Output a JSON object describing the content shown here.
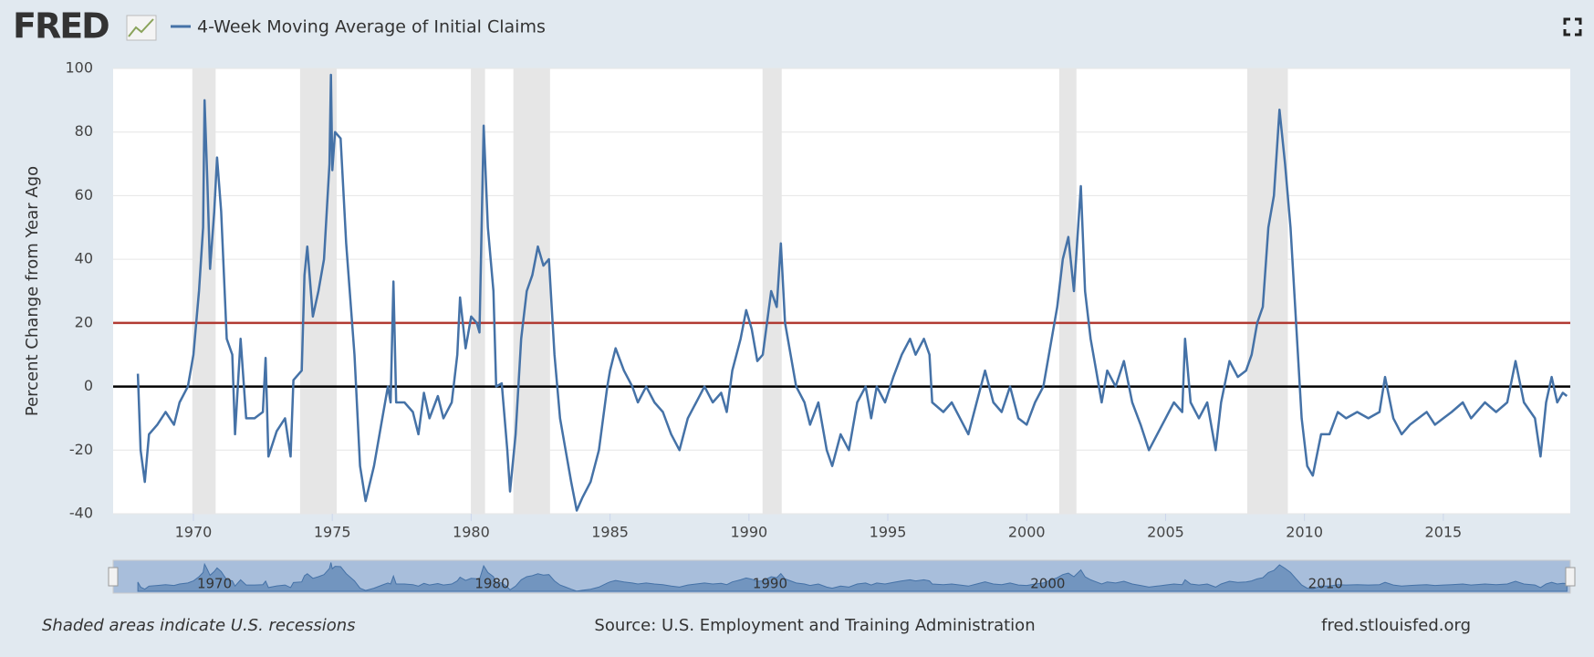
{
  "logo": "FRED",
  "chart_data": {
    "type": "line",
    "y_label": "Percent Change from Year Ago",
    "note": "Shaded areas indicate U.S. recessions",
    "source": "Source: U.S. Employment and Training Administration",
    "site": "fred.stlouisfed.org",
    "xlim": [
      1967.11,
      2019.57
    ],
    "ylim": [
      -40,
      100
    ],
    "xticks": [
      1970,
      1975,
      1980,
      1985,
      1990,
      1995,
      2000,
      2005,
      2010,
      2015
    ],
    "yticks": [
      -40,
      -20,
      0,
      20,
      40,
      60,
      80,
      100
    ],
    "grid": true,
    "recessions": [
      [
        1969.96,
        1970.8
      ],
      [
        1973.84,
        1975.16
      ],
      [
        1979.99,
        1980.5
      ],
      [
        1981.52,
        1982.84
      ],
      [
        1990.49,
        1991.18
      ],
      [
        2001.17,
        2001.79
      ],
      [
        2007.94,
        2009.4
      ]
    ],
    "recession_color": "#e6e6e6",
    "reference_lines": [
      {
        "value": 20,
        "color": "#b13a33"
      },
      {
        "value": 0,
        "color": "#000000"
      }
    ],
    "navigator_ticks": [
      1970,
      1980,
      1990,
      2000,
      2010
    ],
    "x": [
      1968.0,
      1968.1,
      1968.25,
      1968.4,
      1968.7,
      1969.0,
      1969.3,
      1969.5,
      1969.8,
      1970.0,
      1970.2,
      1970.35,
      1970.4,
      1970.5,
      1970.6,
      1970.75,
      1970.85,
      1971.0,
      1971.2,
      1971.4,
      1971.5,
      1971.7,
      1971.9,
      1972.2,
      1972.5,
      1972.6,
      1972.7,
      1973.0,
      1973.3,
      1973.5,
      1973.6,
      1973.9,
      1974.0,
      1974.1,
      1974.3,
      1974.5,
      1974.7,
      1974.9,
      1974.95,
      1975.0,
      1975.1,
      1975.3,
      1975.5,
      1975.8,
      1976.0,
      1976.2,
      1976.5,
      1976.8,
      1977.0,
      1977.1,
      1977.2,
      1977.3,
      1977.6,
      1977.9,
      1978.1,
      1978.3,
      1978.5,
      1978.8,
      1979.0,
      1979.3,
      1979.5,
      1979.6,
      1979.8,
      1980.0,
      1980.2,
      1980.3,
      1980.45,
      1980.6,
      1980.8,
      1980.9,
      1981.1,
      1981.3,
      1981.4,
      1981.6,
      1981.8,
      1982.0,
      1982.2,
      1982.4,
      1982.6,
      1982.8,
      1983.0,
      1983.2,
      1983.4,
      1983.6,
      1983.8,
      1984.0,
      1984.3,
      1984.6,
      1984.9,
      1985.0,
      1985.2,
      1985.5,
      1985.8,
      1986.0,
      1986.3,
      1986.6,
      1986.9,
      1987.2,
      1987.5,
      1987.8,
      1988.1,
      1988.4,
      1988.7,
      1989.0,
      1989.2,
      1989.4,
      1989.7,
      1989.9,
      1990.1,
      1990.3,
      1990.5,
      1990.8,
      1991.0,
      1991.15,
      1991.3,
      1991.5,
      1991.7,
      1992.0,
      1992.2,
      1992.5,
      1992.8,
      1993.0,
      1993.3,
      1993.6,
      1993.9,
      1994.2,
      1994.4,
      1994.6,
      1994.9,
      1995.2,
      1995.5,
      1995.8,
      1996.0,
      1996.3,
      1996.5,
      1996.6,
      1997.0,
      1997.3,
      1997.6,
      1997.9,
      1998.2,
      1998.5,
      1998.8,
      1999.1,
      1999.4,
      1999.7,
      2000.0,
      2000.3,
      2000.6,
      2000.9,
      2001.1,
      2001.3,
      2001.5,
      2001.7,
      2001.95,
      2002.1,
      2002.3,
      2002.5,
      2002.7,
      2002.9,
      2003.2,
      2003.5,
      2003.8,
      2004.1,
      2004.4,
      2004.7,
      2005.0,
      2005.3,
      2005.6,
      2005.7,
      2005.9,
      2006.2,
      2006.5,
      2006.8,
      2007.0,
      2007.3,
      2007.6,
      2007.9,
      2008.1,
      2008.3,
      2008.5,
      2008.7,
      2008.9,
      2009.1,
      2009.3,
      2009.5,
      2009.7,
      2009.9,
      2010.1,
      2010.3,
      2010.6,
      2010.9,
      2011.2,
      2011.5,
      2011.9,
      2012.3,
      2012.7,
      2012.9,
      2013.2,
      2013.5,
      2013.8,
      2014.1,
      2014.4,
      2014.7,
      2015.0,
      2015.3,
      2015.7,
      2016.0,
      2016.5,
      2016.9,
      2017.3,
      2017.6,
      2017.9,
      2018.3,
      2018.5,
      2018.7,
      2018.9,
      2019.1,
      2019.3,
      2019.45
    ],
    "series": [
      {
        "name": "4-Week Moving Average of Initial Claims",
        "color": "#4572a7",
        "values": [
          4,
          -20,
          -30,
          -15,
          -12,
          -8,
          -12,
          -5,
          0,
          10,
          30,
          50,
          90,
          65,
          37,
          55,
          72,
          55,
          15,
          10,
          -15,
          15,
          -10,
          -10,
          -8,
          9,
          -22,
          -14,
          -10,
          -22,
          2,
          5,
          35,
          44,
          22,
          30,
          40,
          70,
          98,
          68,
          80,
          78,
          45,
          10,
          -25,
          -36,
          -25,
          -10,
          0,
          -5,
          33,
          -5,
          -5,
          -8,
          -15,
          -2,
          -10,
          -3,
          -10,
          -5,
          10,
          28,
          12,
          22,
          20,
          17,
          82,
          50,
          30,
          0,
          1,
          -20,
          -33,
          -15,
          15,
          30,
          35,
          44,
          38,
          40,
          10,
          -10,
          -20,
          -30,
          -39,
          -35,
          -30,
          -20,
          0,
          5,
          12,
          5,
          0,
          -5,
          0,
          -5,
          -8,
          -15,
          -20,
          -10,
          -5,
          0,
          -5,
          -2,
          -8,
          5,
          15,
          24,
          18,
          8,
          10,
          30,
          25,
          45,
          20,
          10,
          0,
          -5,
          -12,
          -5,
          -20,
          -25,
          -15,
          -20,
          -5,
          0,
          -10,
          0,
          -5,
          3,
          10,
          15,
          10,
          15,
          10,
          -5,
          -8,
          -5,
          -10,
          -15,
          -5,
          5,
          -5,
          -8,
          0,
          -10,
          -12,
          -5,
          0,
          15,
          25,
          40,
          47,
          30,
          63,
          30,
          15,
          5,
          -5,
          5,
          0,
          8,
          -5,
          -12,
          -20,
          -15,
          -10,
          -5,
          -8,
          15,
          -5,
          -10,
          -5,
          -20,
          -5,
          8,
          3,
          5,
          10,
          20,
          25,
          50,
          60,
          87,
          70,
          50,
          20,
          -10,
          -25,
          -28,
          -15,
          -15,
          -8,
          -10,
          -8,
          -10,
          -8,
          3,
          -10,
          -15,
          -12,
          -10,
          -8,
          -12,
          -10,
          -8,
          -5,
          -10,
          -5,
          -8,
          -5,
          8,
          -5,
          -10,
          -22,
          -5,
          3,
          -5,
          -2,
          -3
        ]
      }
    ]
  }
}
